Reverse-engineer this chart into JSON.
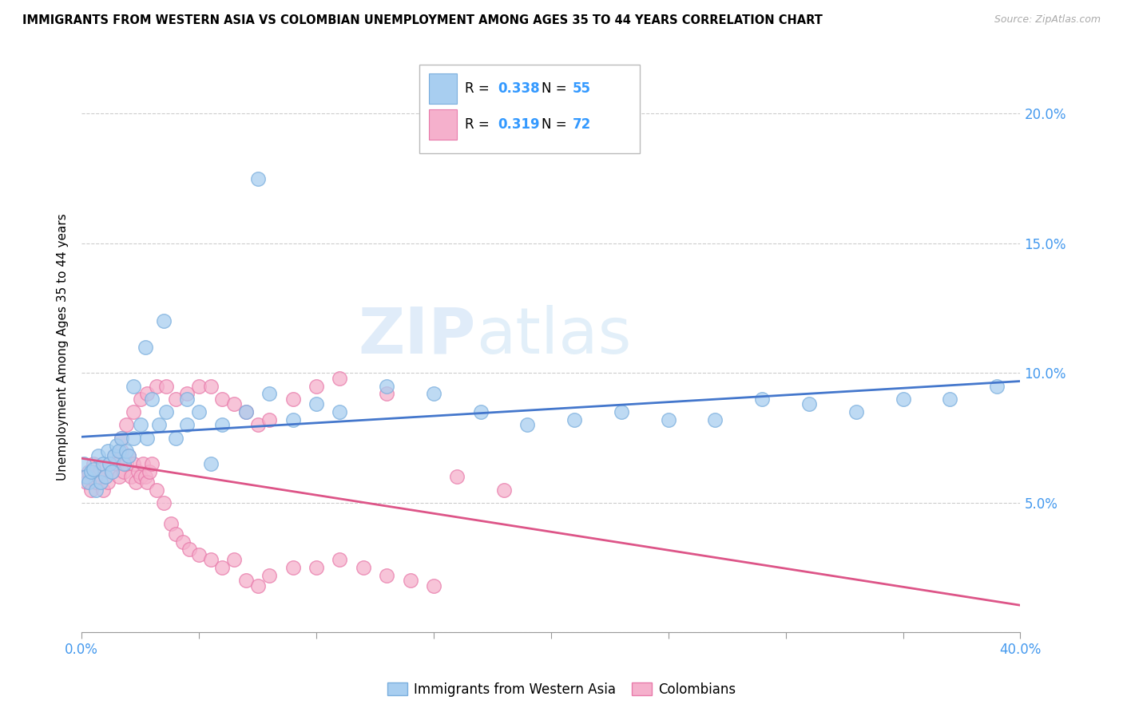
{
  "title": "IMMIGRANTS FROM WESTERN ASIA VS COLOMBIAN UNEMPLOYMENT AMONG AGES 35 TO 44 YEARS CORRELATION CHART",
  "source": "Source: ZipAtlas.com",
  "ylabel": "Unemployment Among Ages 35 to 44 years",
  "xlim": [
    0,
    0.4
  ],
  "ylim": [
    0,
    0.22
  ],
  "xticks": [
    0.0,
    0.05,
    0.1,
    0.15,
    0.2,
    0.25,
    0.3,
    0.35,
    0.4
  ],
  "yticks": [
    0.0,
    0.05,
    0.1,
    0.15,
    0.2
  ],
  "xlabel_ticks": [
    0.0,
    0.4
  ],
  "xticklabels_edge": [
    "0.0%",
    "40.0%"
  ],
  "yticklabels": [
    "",
    "5.0%",
    "10.0%",
    "15.0%",
    "20.0%"
  ],
  "blue_R": "0.338",
  "blue_N": "55",
  "pink_R": "0.319",
  "pink_N": "72",
  "legend_label_blue": "Immigrants from Western Asia",
  "legend_label_pink": "Colombians",
  "blue_color": "#a8cef0",
  "pink_color": "#f5b0cc",
  "blue_edge": "#7aaedd",
  "pink_edge": "#e87aaa",
  "trend_blue": "#4477cc",
  "trend_pink": "#dd5588",
  "watermark_zip": "ZIP",
  "watermark_atlas": "atlas",
  "blue_x": [
    0.001,
    0.002,
    0.003,
    0.004,
    0.005,
    0.006,
    0.007,
    0.008,
    0.009,
    0.01,
    0.011,
    0.012,
    0.013,
    0.014,
    0.015,
    0.016,
    0.017,
    0.018,
    0.019,
    0.02,
    0.022,
    0.025,
    0.027,
    0.03,
    0.033,
    0.036,
    0.04,
    0.045,
    0.05,
    0.06,
    0.07,
    0.08,
    0.09,
    0.1,
    0.11,
    0.13,
    0.15,
    0.17,
    0.19,
    0.21,
    0.23,
    0.25,
    0.27,
    0.29,
    0.31,
    0.33,
    0.35,
    0.37,
    0.39,
    0.022,
    0.028,
    0.035,
    0.045,
    0.055,
    0.075
  ],
  "blue_y": [
    0.065,
    0.06,
    0.058,
    0.062,
    0.063,
    0.055,
    0.068,
    0.058,
    0.065,
    0.06,
    0.07,
    0.065,
    0.062,
    0.068,
    0.072,
    0.07,
    0.075,
    0.065,
    0.07,
    0.068,
    0.075,
    0.08,
    0.11,
    0.09,
    0.08,
    0.085,
    0.075,
    0.09,
    0.085,
    0.08,
    0.085,
    0.092,
    0.082,
    0.088,
    0.085,
    0.095,
    0.092,
    0.085,
    0.08,
    0.082,
    0.085,
    0.082,
    0.082,
    0.09,
    0.088,
    0.085,
    0.09,
    0.09,
    0.095,
    0.095,
    0.075,
    0.12,
    0.08,
    0.065,
    0.175
  ],
  "pink_x": [
    0.001,
    0.002,
    0.003,
    0.004,
    0.005,
    0.006,
    0.007,
    0.008,
    0.009,
    0.01,
    0.011,
    0.012,
    0.013,
    0.014,
    0.015,
    0.016,
    0.017,
    0.018,
    0.019,
    0.02,
    0.021,
    0.022,
    0.023,
    0.024,
    0.025,
    0.026,
    0.027,
    0.028,
    0.029,
    0.03,
    0.032,
    0.035,
    0.038,
    0.04,
    0.043,
    0.046,
    0.05,
    0.055,
    0.06,
    0.065,
    0.07,
    0.075,
    0.08,
    0.09,
    0.1,
    0.11,
    0.12,
    0.13,
    0.14,
    0.15,
    0.017,
    0.019,
    0.022,
    0.025,
    0.028,
    0.032,
    0.036,
    0.04,
    0.045,
    0.05,
    0.055,
    0.06,
    0.065,
    0.07,
    0.075,
    0.08,
    0.09,
    0.1,
    0.11,
    0.13,
    0.16,
    0.18
  ],
  "pink_y": [
    0.06,
    0.058,
    0.062,
    0.055,
    0.065,
    0.058,
    0.06,
    0.063,
    0.055,
    0.06,
    0.058,
    0.065,
    0.062,
    0.068,
    0.065,
    0.06,
    0.07,
    0.062,
    0.065,
    0.068,
    0.06,
    0.065,
    0.058,
    0.062,
    0.06,
    0.065,
    0.06,
    0.058,
    0.062,
    0.065,
    0.055,
    0.05,
    0.042,
    0.038,
    0.035,
    0.032,
    0.03,
    0.028,
    0.025,
    0.028,
    0.02,
    0.018,
    0.022,
    0.025,
    0.025,
    0.028,
    0.025,
    0.022,
    0.02,
    0.018,
    0.075,
    0.08,
    0.085,
    0.09,
    0.092,
    0.095,
    0.095,
    0.09,
    0.092,
    0.095,
    0.095,
    0.09,
    0.088,
    0.085,
    0.08,
    0.082,
    0.09,
    0.095,
    0.098,
    0.092,
    0.06,
    0.055
  ]
}
